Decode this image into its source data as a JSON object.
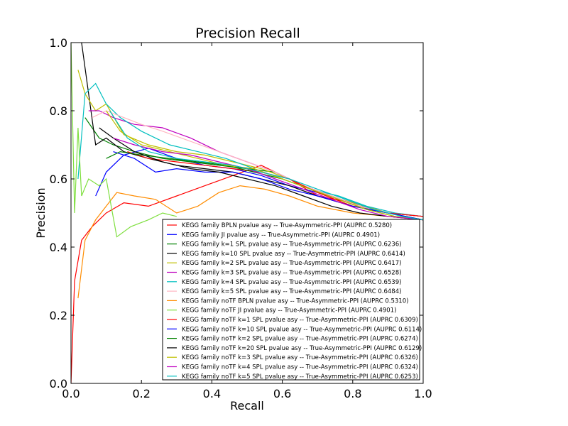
{
  "chart_data": {
    "type": "line",
    "title": "Precision Recall",
    "xlabel": "Recall",
    "ylabel": "Precision",
    "xlim": [
      0.0,
      1.0
    ],
    "ylim": [
      0.0,
      1.0
    ],
    "xticks": [
      "0.0",
      "0.2",
      "0.4",
      "0.6",
      "0.8",
      "1.0"
    ],
    "yticks": [
      "0.0",
      "0.2",
      "0.4",
      "0.6",
      "0.8",
      "1.0"
    ],
    "grid": false,
    "legend_position": "lower-right",
    "series": [
      {
        "name": "KEGG family BPLN pvalue asy -- True-Asymmetric-PPI (AUPRC 0.5280)",
        "color": "#ff0000",
        "x": [
          0.0,
          0.01,
          0.03,
          0.06,
          0.1,
          0.15,
          0.22,
          0.3,
          0.38,
          0.46,
          0.54,
          0.62,
          0.7,
          0.8,
          0.9,
          1.0
        ],
        "y": [
          0.0,
          0.3,
          0.42,
          0.46,
          0.5,
          0.53,
          0.52,
          0.55,
          0.58,
          0.61,
          0.64,
          0.6,
          0.55,
          0.53,
          0.5,
          0.49
        ]
      },
      {
        "name": "KEGG family JI pvalue asy -- True-Asymmetric-PPI (AUPRC 0.4901)",
        "color": "#0000ff",
        "x": [
          0.07,
          0.1,
          0.15,
          0.22,
          0.3,
          0.38,
          0.46,
          0.54,
          0.62,
          0.7,
          0.8,
          0.9,
          1.0
        ],
        "y": [
          0.55,
          0.62,
          0.67,
          0.69,
          0.66,
          0.64,
          0.63,
          0.61,
          0.58,
          0.56,
          0.53,
          0.5,
          0.49
        ]
      },
      {
        "name": "KEGG family k=1 SPL pvalue asy -- True-Asymmetric-PPI (AUPRC 0.6236)",
        "color": "#008000",
        "x": [
          0.04,
          0.08,
          0.12,
          0.18,
          0.26,
          0.34,
          0.42,
          0.5,
          0.58,
          0.66,
          0.74,
          0.82,
          0.9,
          1.0
        ],
        "y": [
          0.78,
          0.72,
          0.7,
          0.68,
          0.66,
          0.65,
          0.64,
          0.63,
          0.62,
          0.58,
          0.55,
          0.52,
          0.5,
          0.49
        ]
      },
      {
        "name": "KEGG family k=10 SPL pvalue asy -- True-Asymmetric-PPI (AUPRC 0.6414)",
        "color": "#000000",
        "x": [
          0.03,
          0.05,
          0.07,
          0.1,
          0.15,
          0.22,
          0.3,
          0.38,
          0.46,
          0.54,
          0.62,
          0.7,
          0.8,
          0.9,
          1.0
        ],
        "y": [
          1.0,
          0.85,
          0.7,
          0.72,
          0.68,
          0.66,
          0.64,
          0.63,
          0.62,
          0.6,
          0.58,
          0.55,
          0.52,
          0.5,
          0.48
        ]
      },
      {
        "name": "KEGG family k=2 SPL pvalue asy -- True-Asymmetric-PPI (AUPRC 0.6417)",
        "color": "#bfbf00",
        "x": [
          0.02,
          0.04,
          0.07,
          0.1,
          0.15,
          0.22,
          0.3,
          0.38,
          0.46,
          0.54,
          0.62,
          0.7,
          0.8,
          0.9,
          1.0
        ],
        "y": [
          0.92,
          0.85,
          0.8,
          0.82,
          0.73,
          0.7,
          0.68,
          0.67,
          0.65,
          0.63,
          0.6,
          0.56,
          0.53,
          0.5,
          0.49
        ]
      },
      {
        "name": "KEGG family k=3 SPL pvalue asy -- True-Asymmetric-PPI (AUPRC 0.6528)",
        "color": "#bf00bf",
        "x": [
          0.05,
          0.08,
          0.12,
          0.18,
          0.26,
          0.34,
          0.42,
          0.5,
          0.58,
          0.66,
          0.74,
          0.82,
          0.9,
          1.0
        ],
        "y": [
          0.8,
          0.8,
          0.78,
          0.76,
          0.75,
          0.72,
          0.68,
          0.65,
          0.62,
          0.58,
          0.55,
          0.52,
          0.5,
          0.49
        ]
      },
      {
        "name": "KEGG family k=4 SPL pvalue asy -- True-Asymmetric-PPI (AUPRC 0.6539)",
        "color": "#00bfbf",
        "x": [
          0.02,
          0.04,
          0.07,
          0.1,
          0.14,
          0.2,
          0.28,
          0.36,
          0.44,
          0.52,
          0.6,
          0.68,
          0.76,
          0.84,
          0.92,
          1.0
        ],
        "y": [
          0.6,
          0.85,
          0.88,
          0.82,
          0.78,
          0.74,
          0.7,
          0.68,
          0.66,
          0.63,
          0.6,
          0.57,
          0.55,
          0.52,
          0.5,
          0.49
        ]
      },
      {
        "name": "KEGG family k=5 SPL pvalue asy -- True-Asymmetric-PPI (AUPRC 0.6484)",
        "color": "#ffb6c1",
        "x": [
          0.06,
          0.1,
          0.15,
          0.2,
          0.26,
          0.34,
          0.42,
          0.5,
          0.58,
          0.66,
          0.74,
          0.82,
          0.9,
          1.0
        ],
        "y": [
          0.78,
          0.8,
          0.78,
          0.76,
          0.74,
          0.71,
          0.68,
          0.65,
          0.62,
          0.58,
          0.55,
          0.52,
          0.5,
          0.49
        ]
      },
      {
        "name": "KEGG family noTF BPLN pvalue asy -- True-Asymmetric-PPI (AUPRC 0.5310)",
        "color": "#ff8c00",
        "x": [
          0.02,
          0.04,
          0.07,
          0.1,
          0.13,
          0.18,
          0.24,
          0.3,
          0.36,
          0.42,
          0.48,
          0.55,
          0.62,
          0.7,
          0.8,
          0.9,
          1.0
        ],
        "y": [
          0.25,
          0.42,
          0.48,
          0.52,
          0.56,
          0.55,
          0.54,
          0.5,
          0.52,
          0.56,
          0.58,
          0.57,
          0.55,
          0.52,
          0.5,
          0.49,
          0.48
        ]
      },
      {
        "name": "KEGG family noTF JI pvalue asy -- True-Asymmetric-PPI (AUPRC 0.4901)",
        "color": "#7fdf3f",
        "x": [
          0.0,
          0.01,
          0.02,
          0.03,
          0.05,
          0.08,
          0.1,
          0.13,
          0.17,
          0.22,
          0.26,
          0.3
        ],
        "y": [
          1.0,
          0.5,
          0.75,
          0.55,
          0.6,
          0.58,
          0.6,
          0.43,
          0.46,
          0.48,
          0.5,
          0.49
        ]
      },
      {
        "name": "KEGG family noTF k=1 SPL pvalue asy -- True-Asymmetric-PPI (AUPRC 0.6309)",
        "color": "#ff0000",
        "x": [
          0.16,
          0.22,
          0.3,
          0.38,
          0.46,
          0.54,
          0.62,
          0.7,
          0.8,
          0.9,
          1.0
        ],
        "y": [
          0.68,
          0.66,
          0.65,
          0.64,
          0.63,
          0.62,
          0.6,
          0.56,
          0.52,
          0.5,
          0.49
        ]
      },
      {
        "name": "KEGG family noTF k=10 SPL pvalue asy -- True-Asymmetric-PPI (AUPRC 0.6114)",
        "color": "#0000ff",
        "x": [
          0.12,
          0.18,
          0.24,
          0.3,
          0.38,
          0.46,
          0.54,
          0.62,
          0.7,
          0.8,
          0.9,
          1.0
        ],
        "y": [
          0.68,
          0.66,
          0.62,
          0.63,
          0.62,
          0.62,
          0.6,
          0.57,
          0.55,
          0.52,
          0.5,
          0.48
        ]
      },
      {
        "name": "KEGG family noTF k=2 SPL pvalue asy -- True-Asymmetric-PPI (AUPRC 0.6274)",
        "color": "#008000",
        "x": [
          0.1,
          0.14,
          0.2,
          0.28,
          0.36,
          0.44,
          0.52,
          0.6,
          0.68,
          0.76,
          0.84,
          0.92,
          1.0
        ],
        "y": [
          0.66,
          0.68,
          0.67,
          0.66,
          0.65,
          0.64,
          0.62,
          0.6,
          0.57,
          0.54,
          0.51,
          0.49,
          0.48
        ]
      },
      {
        "name": "KEGG family noTF k=20 SPL pvalue asy -- True-Asymmetric-PPI (AUPRC 0.6129)",
        "color": "#000000",
        "x": [
          0.08,
          0.12,
          0.18,
          0.26,
          0.34,
          0.42,
          0.5,
          0.58,
          0.66,
          0.74,
          0.82,
          0.9,
          1.0
        ],
        "y": [
          0.75,
          0.72,
          0.68,
          0.65,
          0.63,
          0.62,
          0.6,
          0.58,
          0.55,
          0.52,
          0.5,
          0.49,
          0.48
        ]
      },
      {
        "name": "KEGG family noTF k=3 SPL pvalue asy -- True-Asymmetric-PPI (AUPRC 0.6326)",
        "color": "#bfbf00",
        "x": [
          0.1,
          0.14,
          0.2,
          0.28,
          0.36,
          0.44,
          0.52,
          0.6,
          0.68,
          0.76,
          0.84,
          0.92,
          1.0
        ],
        "y": [
          0.8,
          0.74,
          0.7,
          0.68,
          0.66,
          0.64,
          0.63,
          0.6,
          0.57,
          0.54,
          0.51,
          0.49,
          0.48
        ]
      },
      {
        "name": "KEGG family noTF k=4 SPL pvalue asy -- True-Asymmetric-PPI (AUPRC 0.6324)",
        "color": "#bf00bf",
        "x": [
          0.12,
          0.18,
          0.26,
          0.34,
          0.42,
          0.5,
          0.58,
          0.66,
          0.74,
          0.82,
          0.9,
          1.0
        ],
        "y": [
          0.72,
          0.7,
          0.68,
          0.67,
          0.65,
          0.63,
          0.6,
          0.57,
          0.54,
          0.51,
          0.49,
          0.48
        ]
      },
      {
        "name": "KEGG family noTF k=5 SPL pvalue asy -- True-Asymmetric-PPI (AUPRC 0.6253)",
        "color": "#00bfbf",
        "x": [
          0.11,
          0.16,
          0.22,
          0.3,
          0.38,
          0.46,
          0.54,
          0.62,
          0.7,
          0.78,
          0.86,
          0.94,
          1.0
        ],
        "y": [
          0.8,
          0.72,
          0.68,
          0.66,
          0.65,
          0.64,
          0.62,
          0.6,
          0.57,
          0.54,
          0.51,
          0.49,
          0.48
        ]
      }
    ]
  }
}
